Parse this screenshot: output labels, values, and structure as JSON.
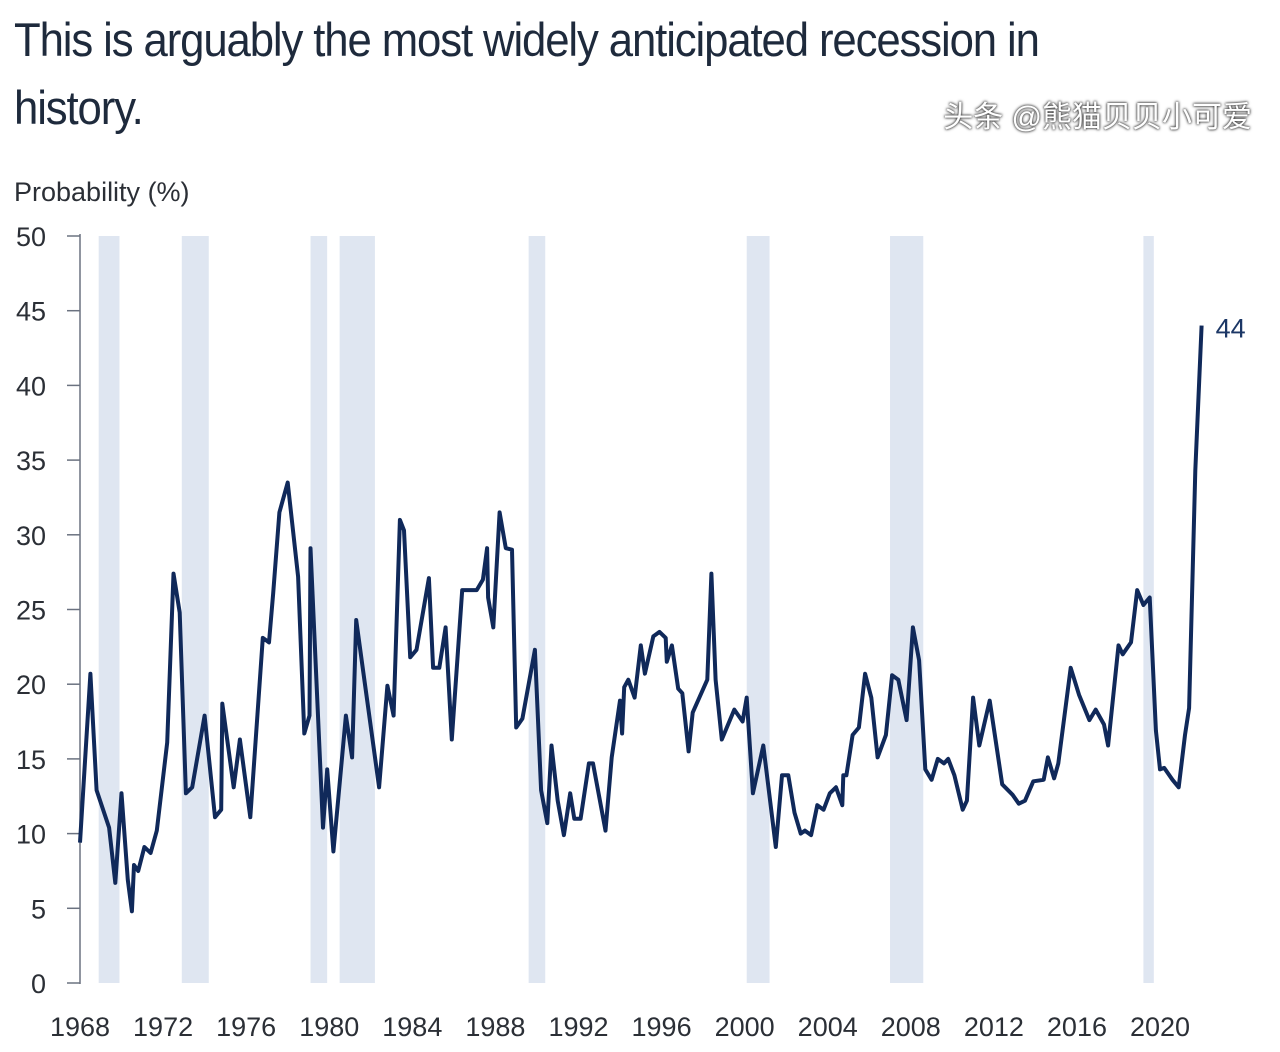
{
  "title": "This is arguably the most widely anticipated recession in history.",
  "watermark": "头条 @熊猫贝贝小可爱",
  "chart_data": {
    "type": "line",
    "title": "This is arguably the most widely anticipated recession in history.",
    "ylabel": "Probability (%)",
    "xlabel": "",
    "xlim": [
      1968,
      2022.5
    ],
    "ylim": [
      0,
      50
    ],
    "x_ticks": [
      "1968",
      "1972",
      "1976",
      "1980",
      "1984",
      "1988",
      "1992",
      "1996",
      "2000",
      "2004",
      "2008",
      "2012",
      "2016",
      "2020"
    ],
    "y_ticks": [
      "0",
      "5",
      "10",
      "15",
      "20",
      "25",
      "30",
      "35",
      "40",
      "45",
      "50"
    ],
    "grid": false,
    "line_color": "#10295a",
    "band_color": "#dfe6f1",
    "end_label": "44",
    "shaded_periods": [
      [
        1968.9,
        1969.9
      ],
      [
        1972.9,
        1974.2
      ],
      [
        1979.1,
        1979.9
      ],
      [
        1980.5,
        1982.2
      ],
      [
        1989.6,
        1990.4
      ],
      [
        2000.1,
        2001.2
      ],
      [
        2007.0,
        2008.6
      ],
      [
        2019.2,
        2019.7
      ]
    ],
    "series": [
      {
        "x": [
          1968.0,
          1968.5,
          1968.8,
          1969.4,
          1969.7,
          1970.0,
          1970.3,
          1970.5,
          1970.6,
          1970.8,
          1971.1,
          1971.4,
          1971.7,
          1972.2,
          1972.5,
          1972.8,
          1973.1,
          1973.4,
          1974.0,
          1974.5,
          1974.8,
          1974.85,
          1975.4,
          1975.7,
          1976.2,
          1976.8,
          1977.1,
          1977.3,
          1977.6,
          1978.0,
          1978.5,
          1978.8,
          1979.05,
          1979.1,
          1979.7,
          1979.9,
          1980.2,
          1980.8,
          1981.1,
          1981.3,
          1981.6,
          1982.4,
          1982.8,
          1983.1,
          1983.4,
          1983.6,
          1983.9,
          1984.2,
          1984.8,
          1985.0,
          1985.3,
          1985.6,
          1985.9,
          1986.4,
          1987.1,
          1987.4,
          1987.6,
          1987.65,
          1987.9,
          1988.2,
          1988.5,
          1988.8,
          1989.0,
          1989.3,
          1989.9,
          1990.2,
          1990.5,
          1990.7,
          1991.0,
          1991.3,
          1991.6,
          1991.8,
          1992.1,
          1992.5,
          1992.7,
          1993.3,
          1993.6,
          1994.0,
          1994.1,
          1994.2,
          1994.4,
          1994.7,
          1995.0,
          1995.2,
          1995.6,
          1995.9,
          1996.2,
          1996.25,
          1996.5,
          1996.8,
          1997.0,
          1997.3,
          1997.5,
          1998.2,
          1998.4,
          1998.6,
          1998.9,
          1999.5,
          1999.9,
          2000.1,
          2000.4,
          2000.9,
          2001.5,
          2001.8,
          2002.1,
          2002.4,
          2002.7,
          2002.9,
          2003.2,
          2003.5,
          2003.8,
          2004.1,
          2004.4,
          2004.7,
          2004.75,
          2004.9,
          2005.2,
          2005.5,
          2005.8,
          2006.1,
          2006.4,
          2006.8,
          2007.1,
          2007.4,
          2007.8,
          2008.1,
          2008.4,
          2008.7,
          2009.0,
          2009.3,
          2009.6,
          2009.8,
          2010.1,
          2010.5,
          2010.7,
          2011.0,
          2011.3,
          2011.8,
          2012.4,
          2012.9,
          2013.2,
          2013.5,
          2013.9,
          2014.4,
          2014.6,
          2014.9,
          2015.1,
          2015.7,
          2016.1,
          2016.6,
          2016.9,
          2017.3,
          2017.5,
          2018.0,
          2018.2,
          2018.6,
          2018.9,
          2019.2,
          2019.5,
          2019.8,
          2020.0,
          2020.2,
          2020.6,
          2020.9,
          2021.2,
          2021.4,
          2021.7,
          2022.0
        ],
        "y": [
          9.4,
          20.7,
          12.9,
          10.4,
          6.7,
          12.7,
          6.9,
          4.8,
          7.9,
          7.5,
          9.1,
          8.7,
          10.2,
          16.1,
          27.4,
          24.8,
          12.7,
          13.1,
          17.9,
          11.1,
          11.6,
          18.7,
          13.1,
          16.3,
          11.1,
          23.1,
          22.8,
          26.1,
          31.5,
          33.5,
          27.2,
          16.7,
          17.9,
          29.1,
          10.4,
          14.3,
          8.8,
          17.9,
          15.1,
          24.3,
          21.2,
          13.1,
          19.9,
          17.9,
          31.0,
          30.3,
          21.8,
          22.3,
          27.1,
          21.1,
          21.1,
          23.8,
          16.3,
          26.3,
          26.3,
          27.0,
          29.1,
          25.8,
          23.8,
          31.5,
          29.1,
          29.0,
          17.1,
          17.7,
          22.3,
          12.9,
          10.7,
          15.9,
          12.2,
          9.9,
          12.7,
          11.0,
          11.0,
          14.7,
          14.7,
          10.2,
          15.1,
          18.9,
          16.7,
          19.8,
          20.3,
          19.1,
          22.6,
          20.7,
          23.2,
          23.5,
          23.1,
          21.5,
          22.6,
          19.7,
          19.4,
          15.5,
          18.1,
          20.3,
          27.4,
          20.3,
          16.3,
          18.3,
          17.5,
          19.1,
          12.7,
          15.9,
          9.1,
          13.9,
          13.9,
          11.4,
          10.0,
          10.2,
          9.9,
          11.9,
          11.6,
          12.7,
          13.1,
          11.9,
          13.9,
          13.9,
          16.6,
          17.1,
          20.7,
          19.1,
          15.1,
          16.6,
          20.6,
          20.3,
          17.6,
          23.8,
          21.6,
          14.3,
          13.6,
          15.0,
          14.7,
          15.0,
          13.9,
          11.6,
          12.2,
          19.1,
          15.9,
          18.9,
          13.3,
          12.6,
          12.0,
          12.2,
          13.5,
          13.6,
          15.1,
          13.7,
          14.7,
          21.1,
          19.3,
          17.6,
          18.3,
          17.3,
          15.9,
          22.6,
          22.0,
          22.8,
          26.3,
          25.3,
          25.8,
          16.9,
          14.3,
          14.4,
          13.6,
          13.1,
          16.6,
          18.4,
          34.3,
          44.0
        ]
      }
    ]
  }
}
